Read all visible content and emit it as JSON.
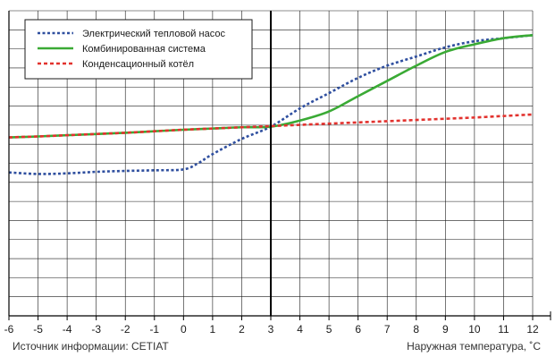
{
  "chart_data": {
    "type": "line",
    "title": "",
    "xlabel": "Наружная температура, ˚C",
    "ylabel": "",
    "source": "Источник информации: CETIAT",
    "xlim": [
      -6,
      12
    ],
    "ylim": [
      0,
      1
    ],
    "x_ticks": [
      -6,
      -5,
      -4,
      -3,
      -2,
      -1,
      0,
      1,
      2,
      3,
      4,
      5,
      6,
      7,
      8,
      9,
      10,
      11,
      12
    ],
    "grid": true,
    "legend_position": "top-left",
    "highlight_x": 3,
    "series": [
      {
        "name": "Электрический тепловой насос",
        "color": "#2f4f9f",
        "style": "dotted",
        "x": [
          -6,
          -5,
          -4,
          -3,
          -2,
          -1,
          0,
          0.5,
          1,
          2,
          3,
          4,
          5,
          6,
          7,
          8,
          9,
          10,
          11,
          12
        ],
        "y": [
          0.47,
          0.465,
          0.467,
          0.472,
          0.475,
          0.477,
          0.48,
          0.5,
          0.53,
          0.58,
          0.62,
          0.68,
          0.73,
          0.78,
          0.82,
          0.85,
          0.88,
          0.9,
          0.91,
          0.92
        ]
      },
      {
        "name": "Комбинированная система",
        "color": "#3aaa35",
        "style": "solid",
        "x": [
          -6,
          -5,
          -4,
          -3,
          -2,
          -1,
          0,
          1,
          2,
          3,
          4,
          5,
          6,
          7,
          8,
          9,
          10,
          11,
          12
        ],
        "y": [
          0.585,
          0.588,
          0.592,
          0.596,
          0.6,
          0.605,
          0.61,
          0.614,
          0.618,
          0.62,
          0.64,
          0.67,
          0.72,
          0.77,
          0.82,
          0.865,
          0.89,
          0.91,
          0.92
        ]
      },
      {
        "name": "Конденсационный котёл",
        "color": "#e2322e",
        "style": "dashed",
        "x": [
          -6,
          -5,
          -4,
          -3,
          -2,
          -1,
          0,
          1,
          2,
          3,
          4,
          5,
          6,
          7,
          8,
          9,
          10,
          11,
          12
        ],
        "y": [
          0.585,
          0.588,
          0.592,
          0.596,
          0.6,
          0.605,
          0.61,
          0.614,
          0.618,
          0.622,
          0.626,
          0.63,
          0.634,
          0.638,
          0.642,
          0.646,
          0.65,
          0.655,
          0.66
        ]
      }
    ]
  }
}
